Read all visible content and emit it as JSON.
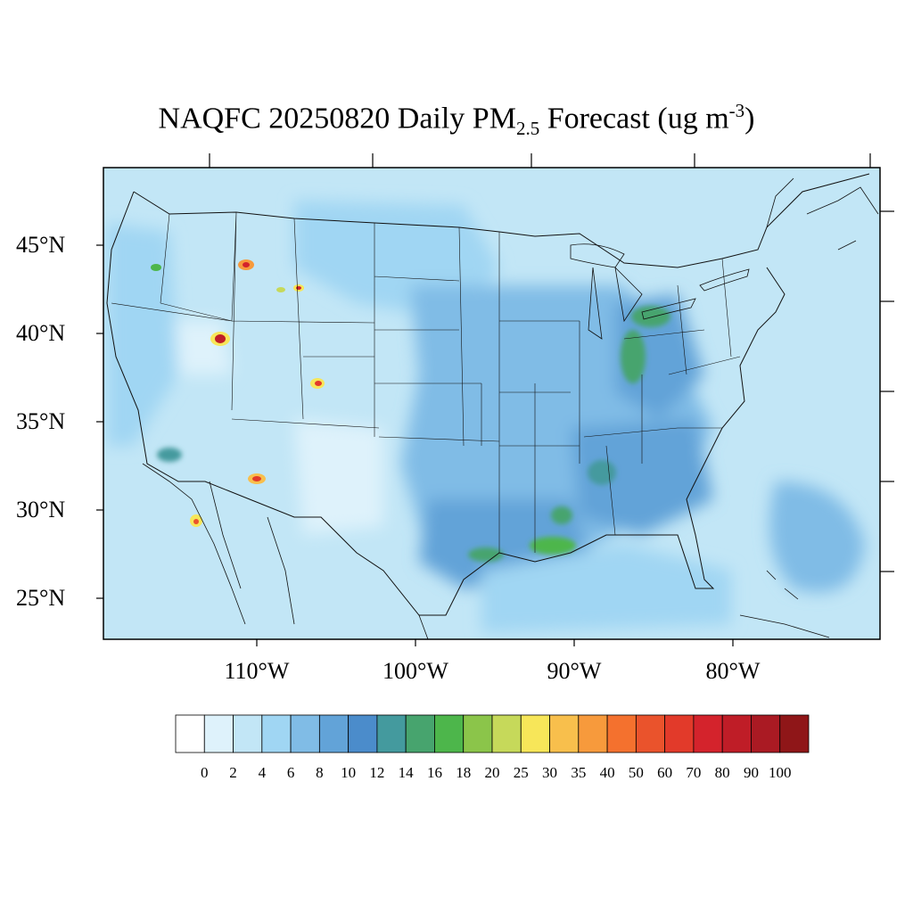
{
  "title": {
    "prefix": "NAQFC 20250820 Daily PM",
    "sub": "2.5",
    "mid": " Forecast (ug m",
    "sup": "-3",
    "suffix": ")"
  },
  "map": {
    "region": "CONUS",
    "projection": "latitude-longitude",
    "lat_labels": [
      "45°N",
      "40°N",
      "35°N",
      "30°N",
      "25°N"
    ],
    "lon_labels": [
      "110°W",
      "100°W",
      "90°W",
      "80°W"
    ],
    "background_color": "#c2e6f6",
    "hotspots": [
      {
        "region": "Idaho (central)",
        "level": "40-60"
      },
      {
        "region": "Northern Utah",
        "level": "50-80"
      },
      {
        "region": "Southern Colorado",
        "level": "30-60"
      },
      {
        "region": "Eastern Arizona",
        "level": "35-70"
      },
      {
        "region": "Northern Baja California",
        "level": "30-50"
      },
      {
        "region": "Western Wyoming",
        "level": "25-60"
      },
      {
        "region": "Gulf Coast (Louisiana)",
        "level": "16-20"
      },
      {
        "region": "Indiana / Ohio",
        "level": "14-18"
      }
    ]
  },
  "colorbar": {
    "labels": [
      "0",
      "2",
      "4",
      "6",
      "8",
      "10",
      "12",
      "14",
      "16",
      "18",
      "20",
      "25",
      "30",
      "35",
      "40",
      "50",
      "60",
      "70",
      "80",
      "90",
      "100"
    ],
    "colors": [
      "#ffffff",
      "#def2fb",
      "#c2e6f6",
      "#a0d6f3",
      "#80bce6",
      "#62a3d8",
      "#4b8ccb",
      "#449a9e",
      "#47a46e",
      "#4db64b",
      "#8bc54a",
      "#c6d95a",
      "#f7e659",
      "#f8bf4c",
      "#f79a3c",
      "#f4712e",
      "#ea532c",
      "#e23a2a",
      "#d4232c",
      "#bf1d27",
      "#aa1a23",
      "#8f1618"
    ]
  }
}
